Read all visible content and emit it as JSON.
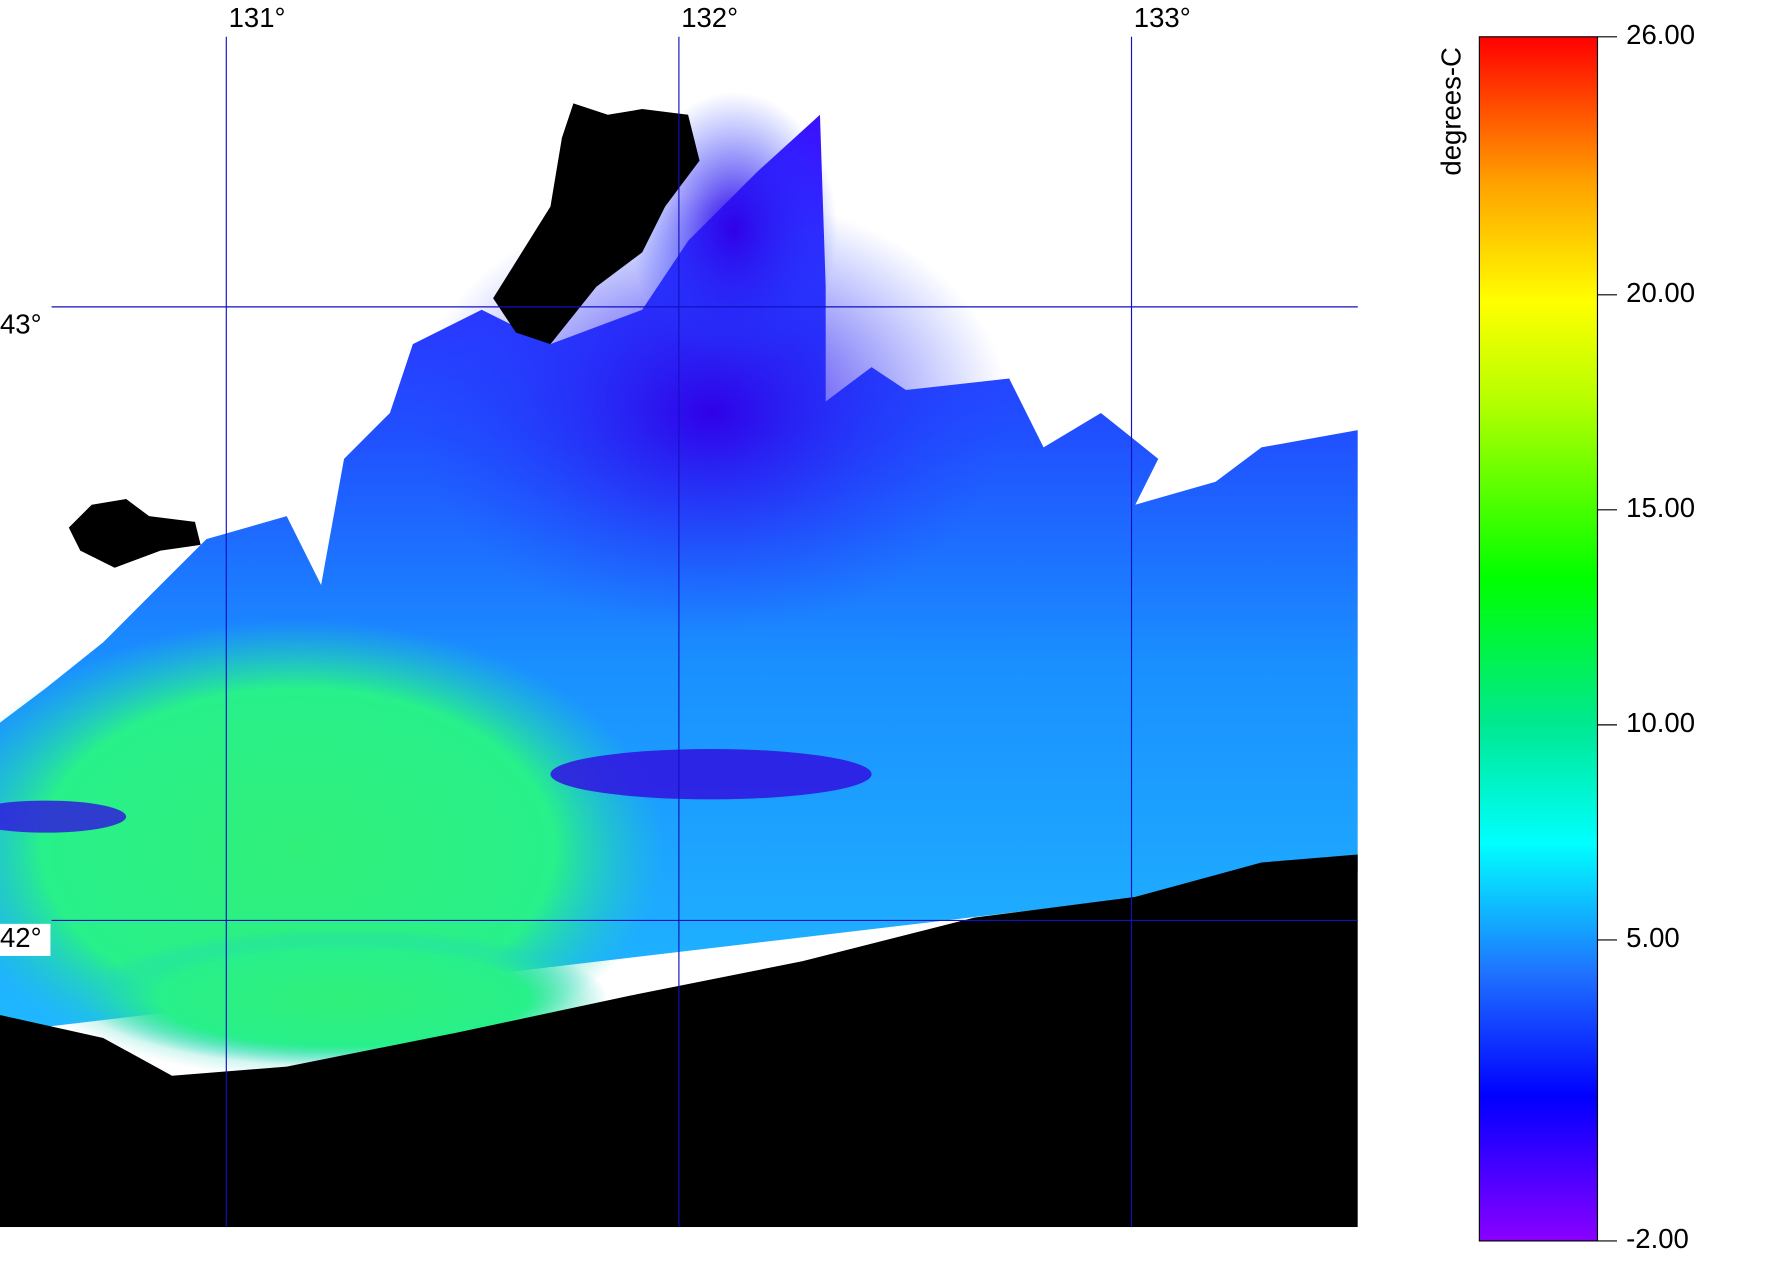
{
  "map": {
    "lon": {
      "lim": [
        130.5,
        133.5
      ],
      "ticks": [
        {
          "value": 131,
          "label": "131°"
        },
        {
          "value": 132,
          "label": "132°"
        },
        {
          "value": 133,
          "label": "133°"
        }
      ]
    },
    "lat": {
      "lim": [
        41.5,
        43.5
      ],
      "ticks": [
        {
          "value": 43,
          "label": "43°"
        },
        {
          "value": 42,
          "label": "42°"
        }
      ]
    }
  },
  "colorbar": {
    "label": "degrees-C",
    "lim": [
      -2,
      26
    ],
    "ticks": [
      {
        "value": 26,
        "label": "26.00"
      },
      {
        "value": 20,
        "label": "20.00"
      },
      {
        "value": 15,
        "label": "15.00"
      },
      {
        "value": 10,
        "label": "10.00"
      },
      {
        "value": 5,
        "label": "5.00"
      },
      {
        "value": -2,
        "label": "-2.00"
      }
    ]
  }
}
